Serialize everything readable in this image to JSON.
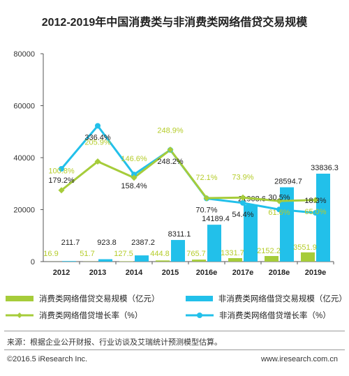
{
  "chart_data": {
    "type": "bar",
    "title": "2012-2019年中国消费类与非消费类网络借贷交易规模",
    "categories": [
      "2012",
      "2013",
      "2014",
      "2015",
      "2016e",
      "2017e",
      "2018e",
      "2019e"
    ],
    "ylim": [
      0,
      80000
    ],
    "y_ticks": [
      "0",
      "20000",
      "40000",
      "60000",
      "80000"
    ],
    "ylim_rate": [
      -160,
      600
    ],
    "grid": false,
    "legend_position": "bottom",
    "series": [
      {
        "name": "消费类网络借贷交易规模（亿元）",
        "kind": "bar",
        "color": "#a6cc3a",
        "values": [
          16.9,
          51.7,
          127.5,
          444.8,
          765.7,
          1331.7,
          2152.2,
          3551.9
        ],
        "labels": [
          "16.9",
          "51.7",
          "127.5",
          "444.8",
          "765.7",
          "1331.7",
          "2152.2",
          "3551.9"
        ]
      },
      {
        "name": "非消费类网络借贷交易规模（亿元）",
        "kind": "bar",
        "color": "#22c0ea",
        "values": [
          211.7,
          923.8,
          2387.2,
          8311.1,
          14189.4,
          21908.6,
          28594.7,
          33836.3
        ],
        "labels": [
          "211.7",
          "923.8",
          "2387.2",
          "8311.1",
          "14189.4",
          "21908.6",
          "28594.7",
          "33836.3"
        ]
      },
      {
        "name": "消费类网络借贷增长率（%）",
        "kind": "line",
        "color": "#a6cc3a",
        "values": [
          100.8,
          205.9,
          146.6,
          248.9,
          72.1,
          73.9,
          61.6,
          65.0
        ],
        "labels": [
          "100.8%",
          "205.9%",
          "146.6%",
          "248.9%",
          "72.1%",
          "73.9%",
          "61.6%",
          "65.0%"
        ]
      },
      {
        "name": "非消费类网络借贷增长率（%）",
        "kind": "line",
        "color": "#22c0ea",
        "values": [
          179.2,
          336.4,
          158.4,
          248.2,
          70.7,
          54.4,
          30.5,
          18.3
        ],
        "labels": [
          "179.2%",
          "336.4%",
          "158.4%",
          "248.2%",
          "70.7%",
          "54.4%",
          "30.5%",
          "18.3%"
        ]
      }
    ]
  },
  "source_note": "来源：根据企业公开财报、行业访谈及艾瑞统计预测模型估算。",
  "copyright": "©2016.5 iResearch Inc.",
  "website": "www.iresearch.com.cn"
}
